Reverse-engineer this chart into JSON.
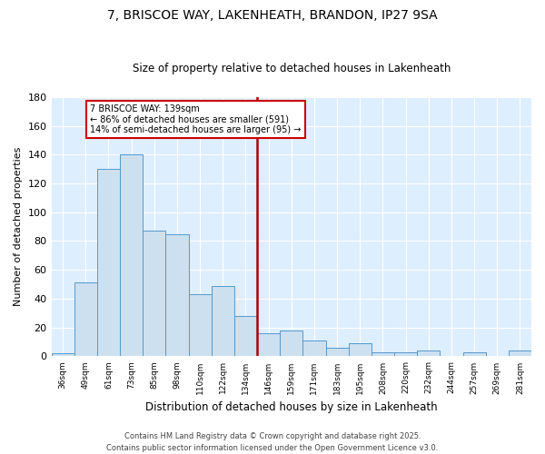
{
  "title": "7, BRISCOE WAY, LAKENHEATH, BRANDON, IP27 9SA",
  "subtitle": "Size of property relative to detached houses in Lakenheath",
  "xlabel": "Distribution of detached houses by size in Lakenheath",
  "ylabel": "Number of detached properties",
  "footer_line1": "Contains HM Land Registry data © Crown copyright and database right 2025.",
  "footer_line2": "Contains public sector information licensed under the Open Government Licence v3.0.",
  "annotation_title": "7 BRISCOE WAY: 139sqm",
  "annotation_line1": "← 86% of detached houses are smaller (591)",
  "annotation_line2": "14% of semi-detached houses are larger (95) →",
  "bar_labels": [
    "36sqm",
    "49sqm",
    "61sqm",
    "73sqm",
    "85sqm",
    "98sqm",
    "110sqm",
    "122sqm",
    "134sqm",
    "146sqm",
    "159sqm",
    "171sqm",
    "183sqm",
    "195sqm",
    "208sqm",
    "220sqm",
    "232sqm",
    "244sqm",
    "257sqm",
    "269sqm",
    "281sqm"
  ],
  "bar_heights": [
    2,
    51,
    130,
    140,
    87,
    85,
    43,
    49,
    28,
    16,
    18,
    11,
    6,
    9,
    3,
    3,
    4,
    0,
    3,
    0,
    4
  ],
  "bar_color": "#cce0f0",
  "bar_edge_color": "#5599cc",
  "vline_color": "#aa0000",
  "vline_pos": 8.5,
  "ylim": [
    0,
    180
  ],
  "yticks": [
    0,
    20,
    40,
    60,
    80,
    100,
    120,
    140,
    160,
    180
  ],
  "plot_bg_color": "#ddeeff",
  "fig_bg_color": "#ffffff",
  "grid_color": "#ffffff",
  "annotation_box_facecolor": "#ffffff",
  "annotation_box_edgecolor": "#cc0000",
  "title_fontsize": 10,
  "subtitle_fontsize": 8.5,
  "ylabel_fontsize": 8,
  "xlabel_fontsize": 8.5,
  "ytick_fontsize": 8,
  "xtick_fontsize": 6.5,
  "footer_fontsize": 6
}
